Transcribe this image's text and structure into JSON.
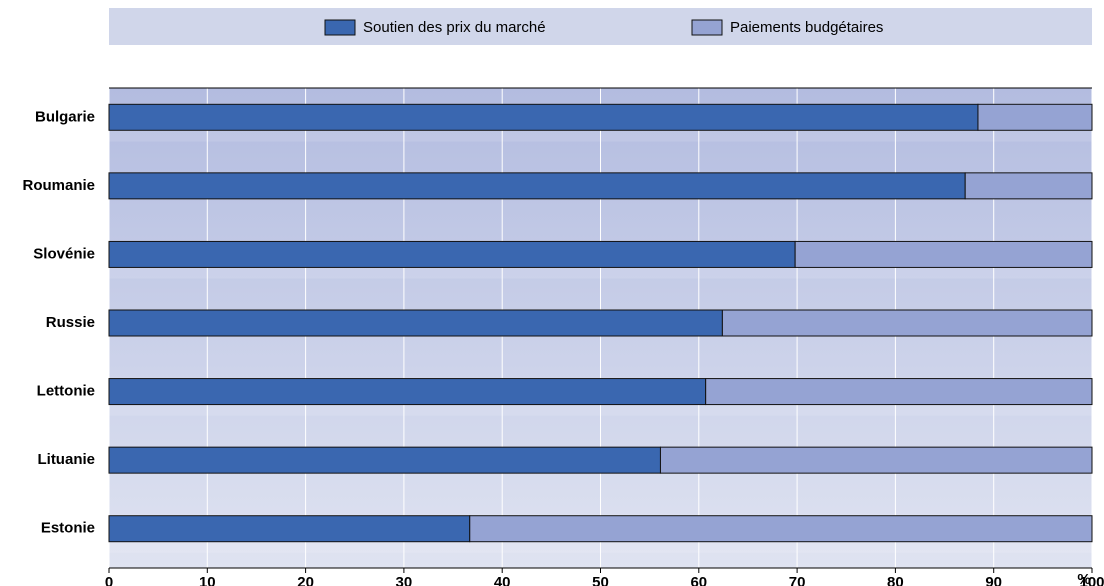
{
  "chart_data": {
    "type": "stacked_barh",
    "categories": [
      "Bulgarie",
      "Roumanie",
      "Slovénie",
      "Russie",
      "Lettonie",
      "Lituanie",
      "Estonie"
    ],
    "series": [
      {
        "name": "Soutien des prix du marché",
        "color": "#3a67b0",
        "values": [
          88.4,
          87.1,
          69.8,
          62.4,
          60.7,
          56.1,
          36.7
        ]
      },
      {
        "name": "Paiements budgétaires",
        "color": "#95a3d3",
        "values": [
          11.6,
          12.9,
          30.2,
          37.6,
          39.3,
          43.9,
          63.3
        ]
      }
    ],
    "xlim": [
      0,
      100
    ],
    "xticks": [
      0,
      10,
      20,
      30,
      40,
      50,
      60,
      70,
      80,
      90,
      100
    ],
    "x_label": "%",
    "grid": true,
    "legend": "top"
  }
}
